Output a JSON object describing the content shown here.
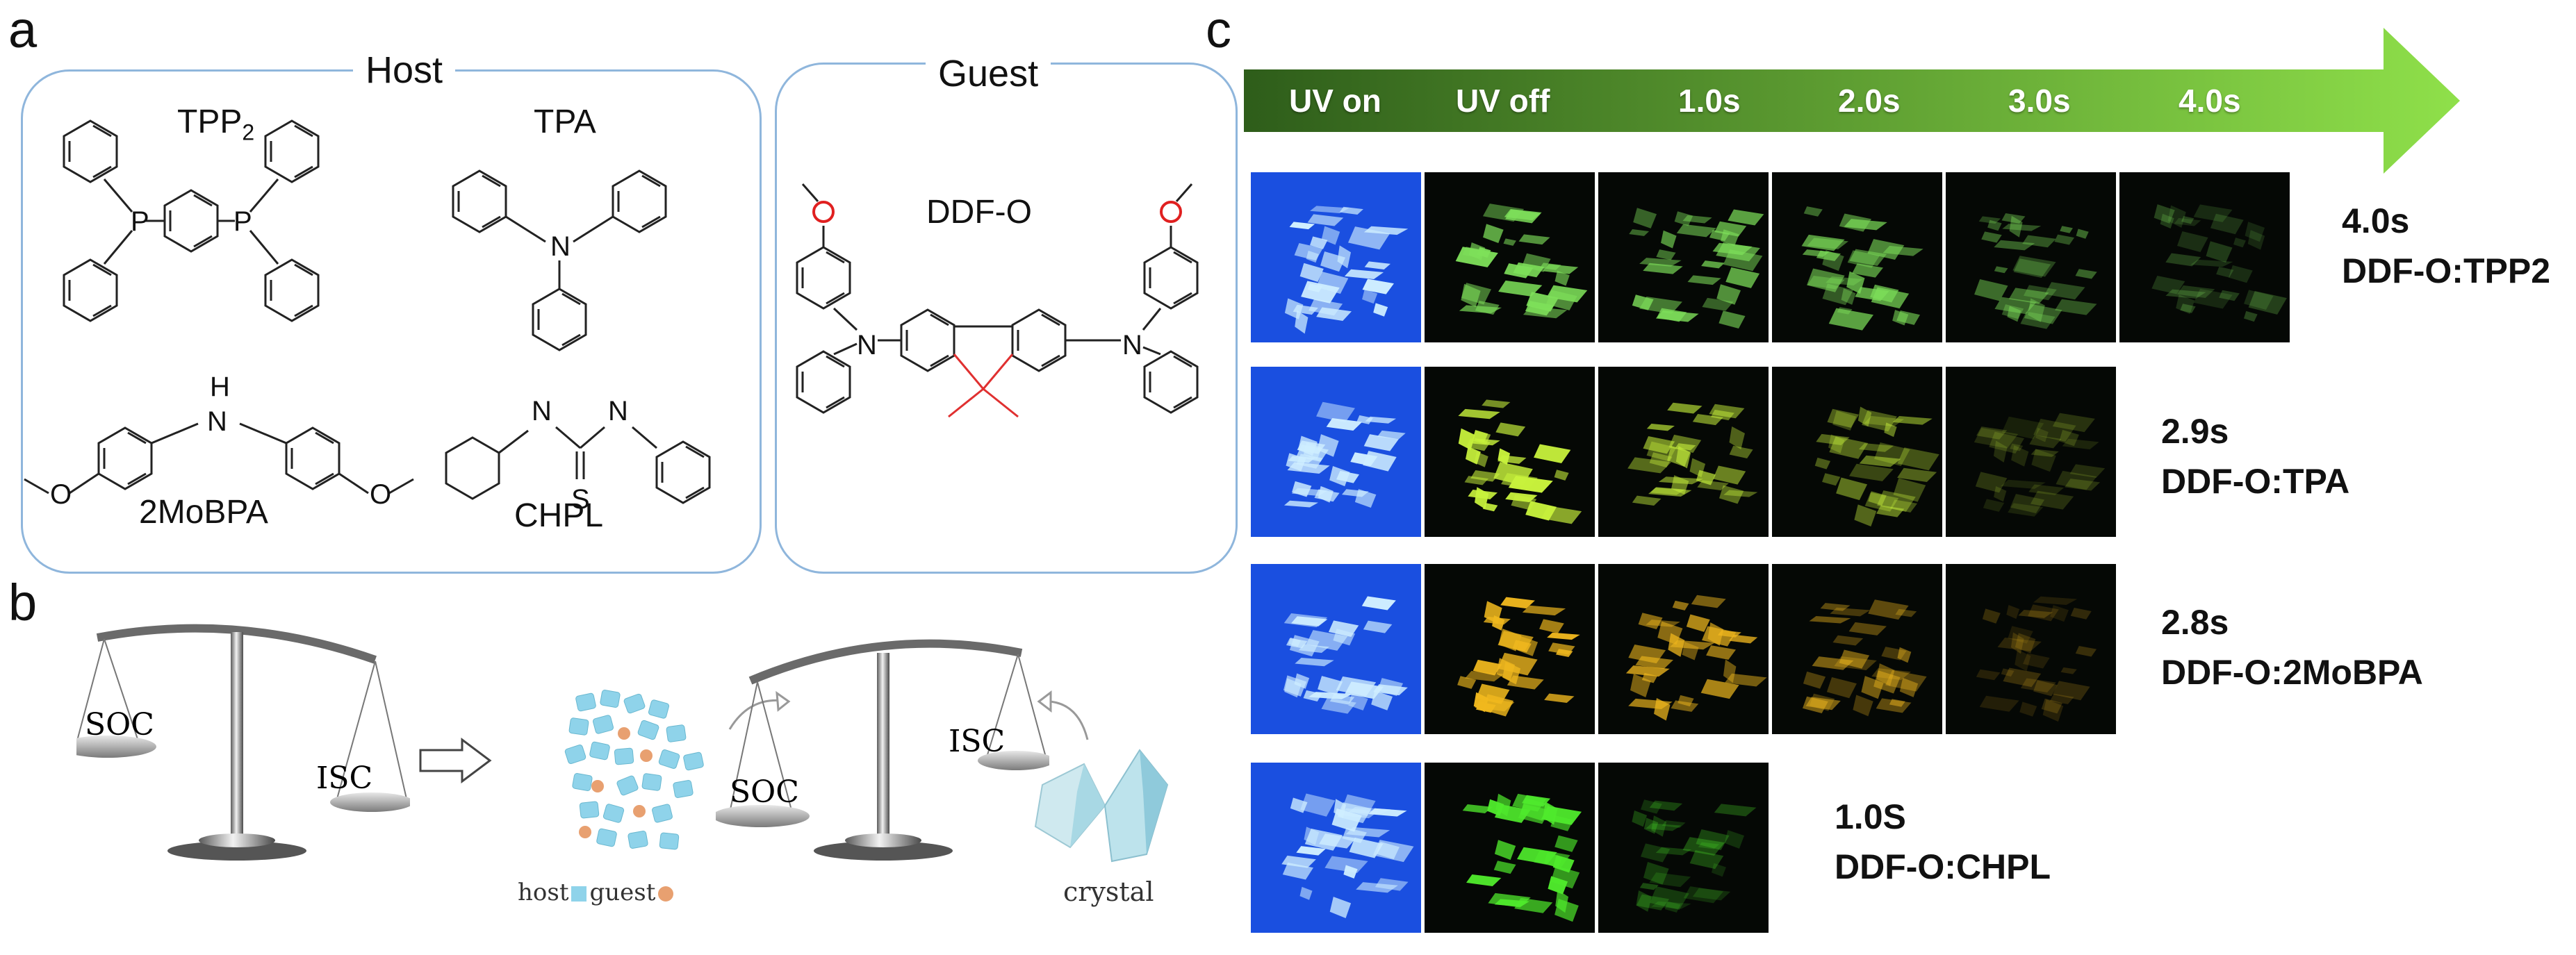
{
  "panels": {
    "a": "a",
    "b": "b",
    "c": "c"
  },
  "host": {
    "title": "Host",
    "molecules": [
      {
        "name": "TPP",
        "subscript": "2"
      },
      {
        "name": "TPA"
      },
      {
        "name": "2MoBPA"
      },
      {
        "name": "CHPL"
      }
    ]
  },
  "guest": {
    "title": "Guest",
    "molecule": "DDF-O"
  },
  "atoms": {
    "P": "P",
    "N": "N",
    "H": "H",
    "S": "S",
    "O": "O"
  },
  "panel_b": {
    "soc": "SOC",
    "isc": "ISC",
    "host_label": "host",
    "guest_label": "guest",
    "crystal_label": "crystal"
  },
  "panel_c": {
    "timeline": [
      "UV on",
      "UV off",
      "1.0s",
      "2.0s",
      "3.0s",
      "4.0s"
    ],
    "rows": [
      {
        "duration": "4.0s",
        "system": "DDF-O:TPP2",
        "frames": 6,
        "phosphor": "#7ee05a",
        "decay": [
          0.95,
          0.8,
          0.72,
          0.48,
          0.28
        ]
      },
      {
        "duration": "2.9s",
        "system": "DDF-O:TPA",
        "frames": 5,
        "phosphor": "#c8f23c",
        "decay": [
          1.0,
          0.7,
          0.5,
          0.2
        ]
      },
      {
        "duration": "2.8s",
        "system": "DDF-O:2MoBPA",
        "frames": 5,
        "phosphor": "#f0b81e",
        "decay": [
          1.0,
          0.8,
          0.5,
          0.22
        ]
      },
      {
        "duration": "1.0S",
        "system": "DDF-O:CHPL",
        "frames": 3,
        "phosphor": "#4fea2c",
        "decay": [
          1.0,
          0.3
        ]
      }
    ],
    "uv_color": "#1a4fe0",
    "arrow_dark": "#2e5d1a",
    "arrow_light": "#8fe04a"
  }
}
